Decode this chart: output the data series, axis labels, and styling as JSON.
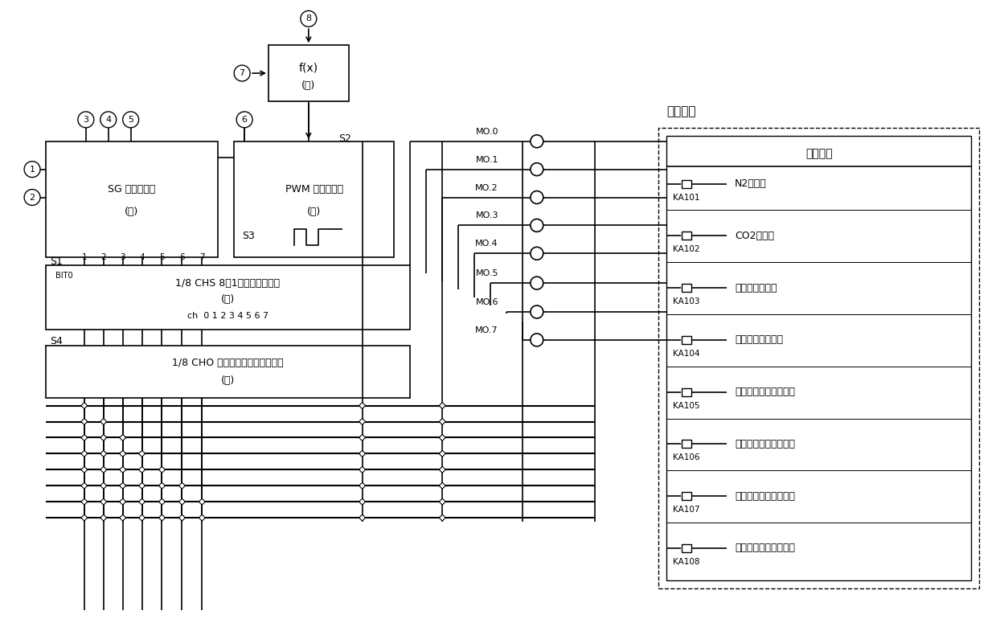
{
  "bg_color": "#ffffff",
  "output_signals": {
    "title": "输出信号",
    "outer_label": "外部输出",
    "items": [
      {
        "ka": "KA101",
        "label": "N2进气阀"
      },
      {
        "ka": "KA102",
        "label": "CO2进气阀"
      },
      {
        "ka": "KA103",
        "label": "压缩空气流化阀"
      },
      {
        "ka": "KA104",
        "label": "中间仓保护进气阀"
      },
      {
        "ka": "KA105",
        "label": "煮粉仓底部保护进气阀"
      },
      {
        "ka": "KA106",
        "label": "煮粉仓中部保护进气阀"
      },
      {
        "ka": "KA107",
        "label": "煮粉仓上部保护进气阀"
      },
      {
        "ka": "KA108",
        "label": "煮粉仓顶部保护进气阀"
      }
    ]
  },
  "mo_labels": [
    "MO.0",
    "MO.1",
    "MO.2",
    "MO.3",
    "MO.4",
    "MO.5",
    "MO.6",
    "MO.7"
  ],
  "box1_line1": "SG 顺序发生器",
  "box1_line2": "(一)",
  "box2_line1": "PWM 方波发生器",
  "box2_line2": "(三)",
  "box3_line1": "f(x)",
  "box3_line2": "(二)",
  "box4_line1": "1/8 CHS 8选1输出通道选择器",
  "box4_line2": "(四)",
  "box4_line3": "ch  0 1 2 3 4 5 6 7",
  "box5_line1": "1/8 CHO 多通道数字信号输出单元",
  "box5_line2": "(五)"
}
